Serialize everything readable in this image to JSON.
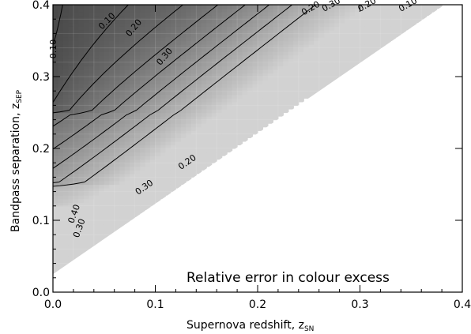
{
  "chart_data": {
    "type": "contour",
    "title": "",
    "annotation": "Relative error in colour excess",
    "xlabel": {
      "main": "Supernova redshift, z",
      "sub": "SN"
    },
    "ylabel": {
      "main": "Bandpass separation, z",
      "sub": "SEP"
    },
    "xlim": [
      0.0,
      0.4
    ],
    "ylim": [
      0.0,
      0.4
    ],
    "xticks": [
      0.0,
      0.1,
      0.2,
      0.3,
      0.4
    ],
    "yticks": [
      0.0,
      0.1,
      0.2,
      0.3,
      0.4
    ],
    "xtick_labels": [
      "0.0",
      "0.1",
      "0.2",
      "0.3",
      "0.4"
    ],
    "ytick_labels": [
      "0.0",
      "0.1",
      "0.2",
      "0.3",
      "0.4"
    ],
    "grid": true,
    "valid_region": "z_sep >= 0.025 + 0.98 * z_sn",
    "contour_levels": [
      0.05,
      0.1,
      0.15,
      0.2,
      0.25,
      0.3,
      0.35,
      0.4
    ],
    "contour_labels": [
      {
        "text": "0.10",
        "x": 0.048,
        "y": 0.365,
        "angle": -45
      },
      {
        "text": "0.20",
        "x": 0.075,
        "y": 0.355,
        "angle": -50
      },
      {
        "text": "0.30",
        "x": 0.105,
        "y": 0.315,
        "angle": -50
      },
      {
        "text": "0.20",
        "x": 0.245,
        "y": 0.385,
        "angle": -30
      },
      {
        "text": "0.30",
        "x": 0.265,
        "y": 0.39,
        "angle": -30
      },
      {
        "text": "0.20",
        "x": 0.3,
        "y": 0.39,
        "angle": -30
      },
      {
        "text": "0.10",
        "x": 0.34,
        "y": 0.39,
        "angle": -30
      },
      {
        "text": "0.20",
        "x": 0.125,
        "y": 0.17,
        "angle": -35
      },
      {
        "text": "0.30",
        "x": 0.083,
        "y": 0.135,
        "angle": -35
      },
      {
        "text": "0.10",
        "x": 0.003,
        "y": 0.325,
        "angle": -90
      },
      {
        "text": "0.30",
        "x": 0.025,
        "y": 0.075,
        "angle": -70
      },
      {
        "text": "0.40",
        "x": 0.02,
        "y": 0.095,
        "angle": -70
      }
    ]
  }
}
